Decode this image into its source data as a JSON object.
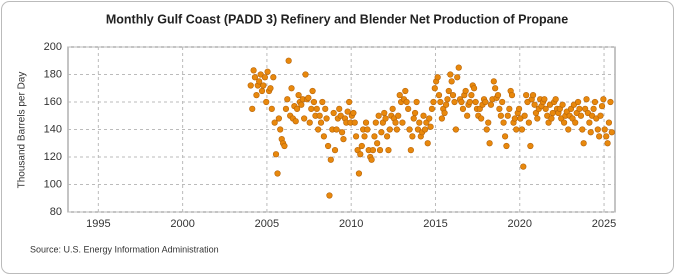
{
  "chart_data": {
    "type": "scatter",
    "title": "Monthly Gulf Coast (PADD 3) Refinery and Blender Net Production of Propane",
    "y_label": "Thousand Barrels per Day",
    "source": "Source: U.S. Energy Information Administration",
    "color": "#e8880c",
    "grid": true,
    "xlim": [
      1993.2,
      2025.65
    ],
    "ylim": [
      80,
      200
    ],
    "xticks": [
      1995,
      2000,
      2005,
      2010,
      2015,
      2020,
      2025
    ],
    "yticks": [
      80,
      100,
      120,
      140,
      160,
      180,
      200
    ],
    "x": [
      2004.04,
      2004.13,
      2004.21,
      2004.29,
      2004.38,
      2004.46,
      2004.54,
      2004.63,
      2004.71,
      2004.79,
      2004.88,
      2004.96,
      2005.04,
      2005.13,
      2005.21,
      2005.29,
      2005.38,
      2005.46,
      2005.54,
      2005.63,
      2005.71,
      2005.79,
      2005.88,
      2005.96,
      2006.04,
      2006.13,
      2006.21,
      2006.29,
      2006.38,
      2006.46,
      2006.54,
      2006.63,
      2006.71,
      2006.79,
      2006.88,
      2006.96,
      2007.04,
      2007.13,
      2007.21,
      2007.29,
      2007.38,
      2007.46,
      2007.54,
      2007.63,
      2007.71,
      2007.79,
      2007.88,
      2007.96,
      2008.04,
      2008.13,
      2008.21,
      2008.29,
      2008.38,
      2008.46,
      2008.54,
      2008.63,
      2008.71,
      2008.79,
      2008.88,
      2008.96,
      2009.04,
      2009.13,
      2009.21,
      2009.29,
      2009.38,
      2009.46,
      2009.54,
      2009.63,
      2009.71,
      2009.79,
      2009.88,
      2009.96,
      2010.04,
      2010.13,
      2010.21,
      2010.29,
      2010.38,
      2010.46,
      2010.54,
      2010.63,
      2010.71,
      2010.79,
      2010.88,
      2010.96,
      2011.04,
      2011.13,
      2011.21,
      2011.29,
      2011.38,
      2011.46,
      2011.54,
      2011.63,
      2011.71,
      2011.79,
      2011.88,
      2011.96,
      2012.04,
      2012.13,
      2012.21,
      2012.29,
      2012.38,
      2012.46,
      2012.54,
      2012.63,
      2012.71,
      2012.79,
      2012.88,
      2012.96,
      2013.04,
      2013.13,
      2013.21,
      2013.29,
      2013.38,
      2013.46,
      2013.54,
      2013.63,
      2013.71,
      2013.79,
      2013.88,
      2013.96,
      2014.04,
      2014.13,
      2014.21,
      2014.29,
      2014.38,
      2014.46,
      2014.54,
      2014.63,
      2014.71,
      2014.79,
      2014.88,
      2014.96,
      2015.04,
      2015.13,
      2015.21,
      2015.29,
      2015.38,
      2015.46,
      2015.54,
      2015.63,
      2015.71,
      2015.79,
      2015.88,
      2015.96,
      2016.04,
      2016.13,
      2016.21,
      2016.29,
      2016.38,
      2016.46,
      2016.54,
      2016.63,
      2016.71,
      2016.79,
      2016.88,
      2016.96,
      2017.04,
      2017.13,
      2017.21,
      2017.29,
      2017.38,
      2017.46,
      2017.54,
      2017.63,
      2017.71,
      2017.79,
      2017.88,
      2017.96,
      2018.04,
      2018.13,
      2018.21,
      2018.29,
      2018.38,
      2018.46,
      2018.54,
      2018.63,
      2018.71,
      2018.79,
      2018.88,
      2018.96,
      2019.04,
      2019.13,
      2019.21,
      2019.29,
      2019.38,
      2019.46,
      2019.54,
      2019.63,
      2019.71,
      2019.79,
      2019.88,
      2019.96,
      2020.04,
      2020.13,
      2020.21,
      2020.29,
      2020.38,
      2020.46,
      2020.54,
      2020.63,
      2020.71,
      2020.79,
      2020.88,
      2020.96,
      2021.04,
      2021.13,
      2021.21,
      2021.29,
      2021.38,
      2021.46,
      2021.54,
      2021.63,
      2021.71,
      2021.79,
      2021.88,
      2021.96,
      2022.04,
      2022.13,
      2022.21,
      2022.29,
      2022.38,
      2022.46,
      2022.54,
      2022.63,
      2022.71,
      2022.79,
      2022.88,
      2022.96,
      2023.04,
      2023.13,
      2023.21,
      2023.29,
      2023.38,
      2023.46,
      2023.54,
      2023.63,
      2023.71,
      2023.79,
      2023.88,
      2023.96,
      2024.04,
      2024.13,
      2024.21,
      2024.29,
      2024.38,
      2024.46,
      2024.54,
      2024.63,
      2024.71,
      2024.79,
      2024.88,
      2024.96,
      2025.04,
      2025.13,
      2025.21,
      2025.29,
      2025.38,
      2025.46
    ],
    "values": [
      172,
      155,
      183,
      178,
      165,
      172,
      175,
      180,
      168,
      172,
      178,
      160,
      182,
      168,
      170,
      155,
      178,
      145,
      122,
      108,
      148,
      140,
      133,
      130,
      128,
      155,
      162,
      190,
      150,
      170,
      148,
      157,
      146,
      155,
      165,
      160,
      158,
      162,
      148,
      180,
      162,
      163,
      145,
      155,
      168,
      160,
      150,
      155,
      140,
      150,
      145,
      160,
      135,
      155,
      148,
      128,
      92,
      118,
      140,
      152,
      125,
      140,
      148,
      155,
      150,
      138,
      133,
      148,
      145,
      153,
      160,
      145,
      150,
      152,
      145,
      135,
      125,
      108,
      122,
      128,
      140,
      135,
      145,
      140,
      125,
      120,
      118,
      125,
      135,
      145,
      130,
      150,
      125,
      138,
      145,
      152,
      148,
      135,
      125,
      140,
      150,
      155,
      148,
      145,
      140,
      150,
      165,
      160,
      145,
      162,
      168,
      160,
      155,
      140,
      125,
      135,
      148,
      152,
      160,
      140,
      145,
      135,
      138,
      150,
      140,
      145,
      130,
      148,
      142,
      155,
      160,
      170,
      175,
      178,
      165,
      160,
      148,
      155,
      152,
      158,
      162,
      168,
      180,
      175,
      165,
      160,
      140,
      178,
      185,
      162,
      160,
      155,
      165,
      168,
      150,
      158,
      160,
      165,
      172,
      170,
      160,
      155,
      150,
      155,
      148,
      158,
      162,
      160,
      140,
      145,
      130,
      158,
      162,
      175,
      170,
      163,
      165,
      155,
      150,
      160,
      145,
      135,
      128,
      150,
      155,
      168,
      165,
      145,
      148,
      140,
      152,
      155,
      148,
      140,
      113,
      150,
      165,
      160,
      145,
      128,
      162,
      165,
      158,
      152,
      148,
      155,
      162,
      157,
      160,
      162,
      155,
      150,
      145,
      158,
      148,
      152,
      160,
      162,
      155,
      152,
      155,
      148,
      158,
      145,
      150,
      153,
      140,
      150,
      155,
      148,
      158,
      145,
      152,
      160,
      155,
      150,
      140,
      130,
      155,
      162,
      152,
      145,
      138,
      150,
      155,
      160,
      148,
      140,
      135,
      150,
      157,
      162,
      140,
      135,
      130,
      145,
      160,
      138
    ]
  }
}
